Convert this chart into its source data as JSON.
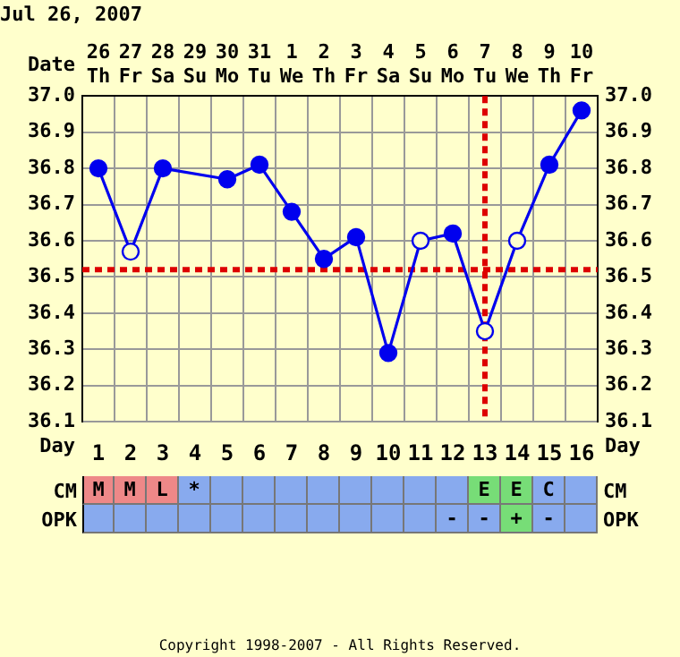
{
  "chart_data": [
    {
      "type": "line",
      "title": "Jul 26, 2007",
      "xlabel": "Date",
      "categories": [
        "26\nTh",
        "27\nFr",
        "28\nSa",
        "29\nSu",
        "30\nMo",
        "31\nTu",
        "1\nWe",
        "2\nTh",
        "3\nFr",
        "4\nSa",
        "5\nSu",
        "6\nMo",
        "7\nTu",
        "8\nWe",
        "9\nTh",
        "10\nFr"
      ],
      "x2label": "Day",
      "x2lim": [
        0.5,
        16.5
      ],
      "x2ticks": [
        1,
        2,
        3,
        4,
        5,
        6,
        7,
        8,
        9,
        10,
        11,
        12,
        13,
        14,
        15,
        16
      ],
      "ylim": [
        36.1,
        37.0
      ],
      "yticks": [
        36.1,
        36.2,
        36.3,
        36.4,
        36.5,
        36.6,
        36.7,
        36.8,
        36.9,
        {
          "value": 37.0,
          "label": "37.0"
        }
      ],
      "y2lim": [
        36.1,
        37.0
      ],
      "y2ticks": [
        36.1,
        36.2,
        36.3,
        36.4,
        36.5,
        36.6,
        36.7,
        36.8,
        36.9,
        {
          "value": 37.0,
          "label": "37.0"
        }
      ],
      "series": [
        {
          "color": "#0000ee",
          "values": [
            36.8,
            36.57,
            36.8,
            null,
            36.77,
            36.81,
            36.68,
            36.55,
            36.61,
            36.29,
            36.6,
            36.62,
            36.35,
            36.6,
            36.81,
            36.96
          ],
          "colors": [
            "#0000ee",
            "#ffffcc",
            "#0000ee",
            null,
            "#0000ee",
            "#0000ee",
            "#0000ee",
            "#0000ee",
            "#0000ee",
            "#0000ee",
            "#ffffcc",
            "#0000ee",
            "#ffffcc",
            "#ffffcc",
            "#0000ee",
            "#0000ee"
          ]
        }
      ],
      "marker": "circle",
      "grid": true,
      "legend": false,
      "ref_lines": [
        {
          "axis": "y",
          "value": 36.52,
          "color": "#dd0000",
          "line_style": "dotted"
        },
        {
          "axis": "x",
          "value": "7\nTu",
          "color": "#dd0000",
          "line_style": "dotted"
        }
      ]
    },
    {
      "type": "other",
      "y_categories": [
        "CM",
        "OPK"
      ],
      "y2_categories": [
        "CM",
        "OPK"
      ],
      "cell_labels": [
        [
          "M",
          "M",
          "L",
          "*",
          null,
          null,
          null,
          null,
          null,
          null,
          null,
          null,
          "E",
          "E",
          "C",
          null
        ],
        [
          null,
          null,
          null,
          null,
          null,
          null,
          null,
          null,
          null,
          null,
          null,
          "-",
          "-",
          "+",
          "-",
          null
        ]
      ],
      "colors": [
        [
          "#ee8888",
          "#ee8888",
          "#ee8888",
          "#88aaee",
          "#88aaee",
          "#88aaee",
          "#88aaee",
          "#88aaee",
          "#88aaee",
          "#88aaee",
          "#88aaee",
          "#88aaee",
          "#77dd77",
          "#77dd77",
          "#88aaee",
          "#88aaee"
        ],
        [
          "#88aaee",
          "#88aaee",
          "#88aaee",
          "#88aaee",
          "#88aaee",
          "#88aaee",
          "#88aaee",
          "#88aaee",
          "#88aaee",
          "#88aaee",
          "#88aaee",
          "#88aaee",
          "#88aaee",
          "#77dd77",
          "#88aaee",
          "#88aaee"
        ]
      ],
      "annotations": [
        "Copyright 1998-2007 - All Rights Reserved."
      ]
    }
  ]
}
